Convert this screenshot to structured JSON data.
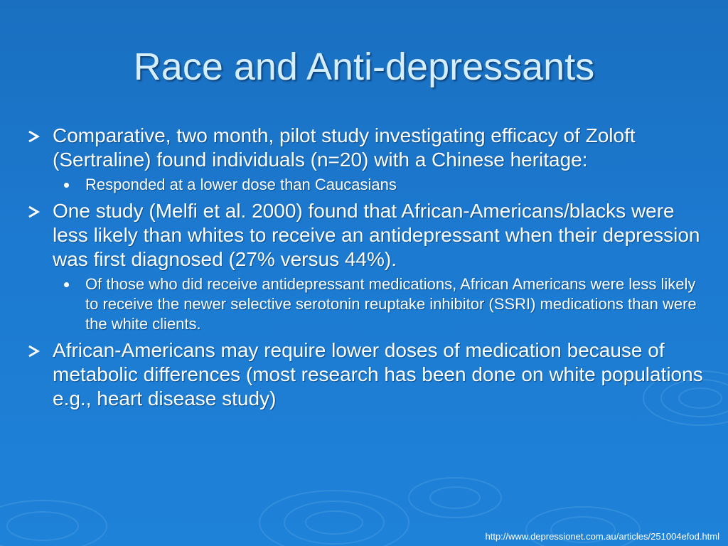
{
  "slide": {
    "title": "Race and Anti-depressants",
    "bullets": [
      {
        "text": "Comparative, two month, pilot study investigating efficacy of Zoloft (Sertraline) found individuals (n=20) with a Chinese heritage:",
        "sub": [
          "Responded at a lower dose than Caucasians"
        ]
      },
      {
        "text": "One study (Melfi et al. 2000) found that African-Americans/blacks were less likely than whites to receive an antidepressant when their depression was first diagnosed (27% versus 44%).",
        "sub": [
          "Of those who did receive antidepressant medications, African Americans were less likely to receive the newer selective serotonin reuptake inhibitor (SSRI) medications than were the white clients."
        ]
      },
      {
        "text": "African-Americans may require lower doses of medication because of metabolic differences (most research has been done on white populations e.g., heart disease study)",
        "sub": []
      }
    ],
    "footer_url": "http://www.depressionet.com.au/articles/251004efod.html"
  },
  "icons": {
    "bullet_level1": "arrowhead-bullet-icon",
    "bullet_level2": "dot-bullet-icon"
  },
  "colors": {
    "background": "#1c7ad0",
    "title": "#d4eefc",
    "text": "#ffffff"
  }
}
